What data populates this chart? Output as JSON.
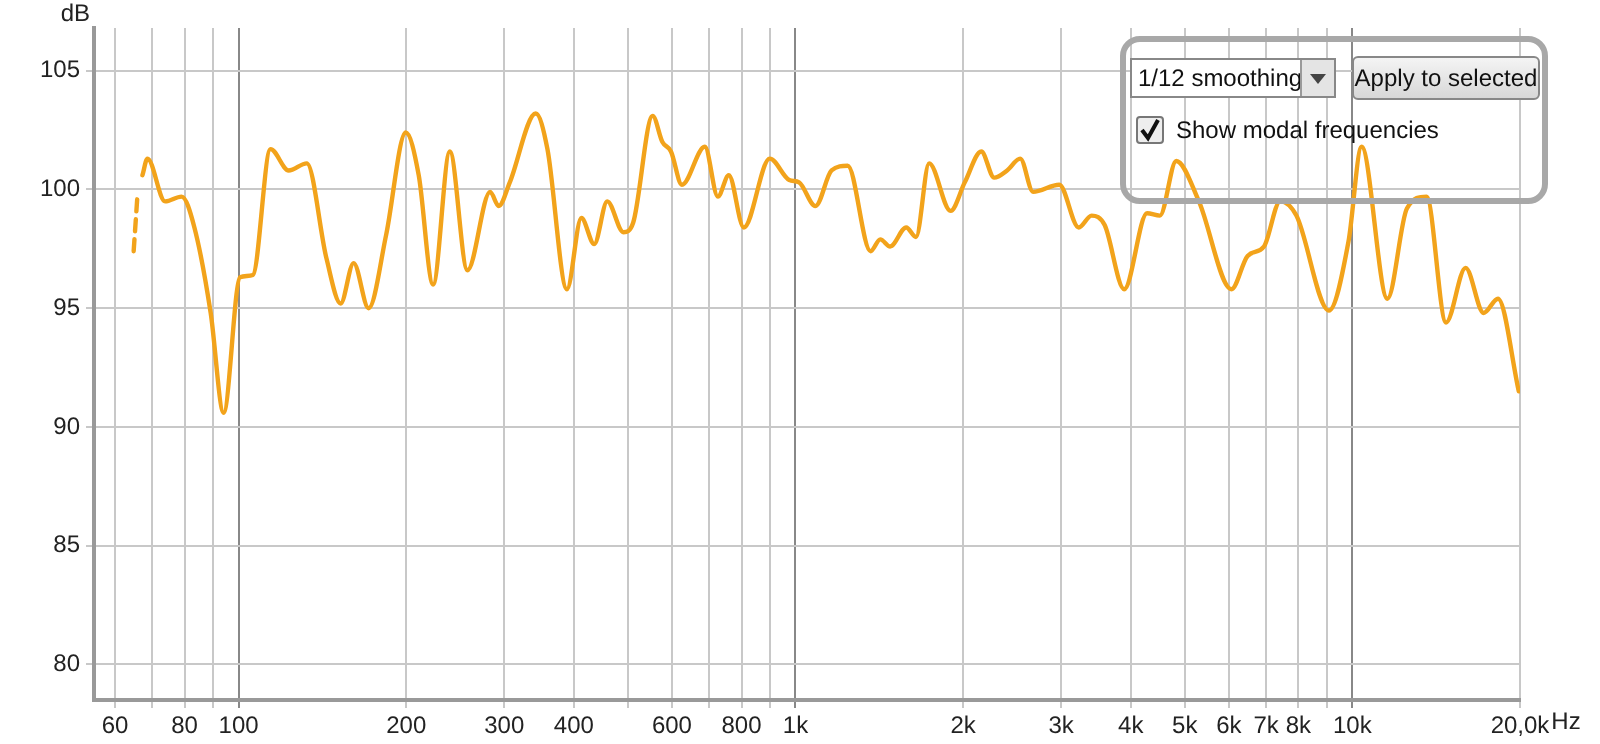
{
  "chart_data": {
    "type": "line",
    "ylabel": "dB",
    "grid": true,
    "log": "x",
    "xlim": [
      55,
      20000
    ],
    "ylim": [
      78.5,
      106.8
    ],
    "xticks": [
      60,
      {
        "value": 70,
        "label": null
      },
      80,
      {
        "value": 90,
        "label": null
      },
      100,
      200,
      300,
      400,
      {
        "value": 500,
        "label": null
      },
      600,
      {
        "value": 700,
        "label": null
      },
      800,
      {
        "value": 900,
        "label": null
      },
      {
        "value": 1000,
        "label": "1k"
      },
      {
        "value": 2000,
        "label": "2k"
      },
      {
        "value": 3000,
        "label": "3k"
      },
      {
        "value": 4000,
        "label": "4k"
      },
      {
        "value": 5000,
        "label": "5k"
      },
      {
        "value": 6000,
        "label": "6k"
      },
      {
        "value": 7000,
        "label": "7k"
      },
      {
        "value": 8000,
        "label": "8k"
      },
      {
        "value": 9000,
        "label": null
      },
      {
        "value": 10000,
        "label": "10k"
      },
      {
        "value": 20000,
        "label": "20,0k"
      }
    ],
    "xlabel": "Hz",
    "yticks": [
      80,
      85,
      90,
      95,
      100,
      105
    ],
    "series": [
      {
        "color": "#f2a31b",
        "line_style": "dashed",
        "x": [
          64.8,
          65.8
        ],
        "values": [
          97.4,
          99.7
        ]
      },
      {
        "color": "#f2a31b",
        "line_style": "solid",
        "x": [
          67.2,
          68.6,
          73.8,
          79.0,
          83.3,
          89.1,
          94.0,
          100.6,
          106.1,
          114.1,
          123.0,
          132.6,
          143.8,
          152.5,
          160.9,
          171.2,
          184.1,
          199.6,
          210.6,
          223.5,
          239.5,
          257.6,
          283.0,
          293.1,
          306.9,
          341.7,
          358.6,
          388.7,
          412.6,
          435.1,
          459.2,
          491.0,
          511.1,
          554.0,
          576.8,
          597.6,
          625.3,
          687.4,
          725.5,
          759.0,
          807.6,
          899.1,
          974.5,
          1015,
          1086,
          1161,
          1241,
          1364,
          1420,
          1479,
          1581,
          1646,
          1738,
          1899,
          2014,
          2156,
          2274,
          2399,
          2533,
          2671,
          2976,
          3226,
          3402,
          3591,
          3893,
          4279,
          4512,
          4828,
          5302,
          6065,
          6485,
          6940,
          7420,
          7934,
          9078,
          9840,
          10390,
          11560,
          12530,
          13590,
          14730,
          15970,
          17210,
          18260,
          19900
        ],
        "values": [
          100.6,
          101.3,
          99.5,
          99.7,
          98.4,
          94.8,
          90.6,
          96.3,
          96.4,
          101.7,
          100.8,
          101.1,
          97.1,
          95.2,
          96.9,
          95.0,
          98.1,
          102.4,
          100.6,
          96.0,
          101.6,
          96.6,
          99.9,
          99.3,
          100.3,
          103.2,
          101.7,
          95.8,
          98.8,
          97.7,
          99.5,
          98.2,
          98.6,
          103.1,
          102.0,
          101.6,
          100.2,
          101.8,
          99.7,
          100.6,
          98.4,
          101.3,
          100.4,
          100.3,
          99.3,
          100.8,
          101.0,
          97.4,
          97.9,
          97.6,
          98.4,
          98.0,
          101.1,
          99.1,
          100.3,
          101.6,
          100.5,
          100.8,
          101.3,
          99.9,
          100.2,
          98.4,
          98.9,
          98.5,
          95.8,
          99.0,
          98.9,
          101.2,
          99.5,
          95.8,
          97.2,
          97.6,
          99.5,
          98.9,
          94.9,
          97.8,
          101.8,
          95.4,
          99.2,
          99.7,
          94.4,
          96.7,
          94.8,
          95.4,
          91.5
        ]
      }
    ],
    "annotations": [
      "1/12 smoothing",
      "Apply to selected",
      "Show modal frequencies"
    ]
  }
}
